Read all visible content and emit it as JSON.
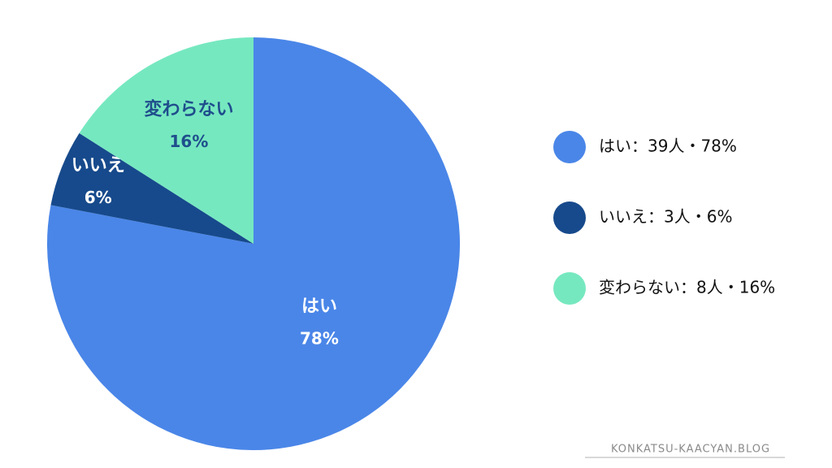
{
  "chart_data": {
    "type": "pie",
    "categories": [
      "はい",
      "いいえ",
      "変わらない"
    ],
    "values": [
      78,
      6,
      16
    ],
    "value_labels": [
      "78%",
      "6%",
      "16%"
    ],
    "colors": [
      "#4a86e8",
      "#174a8c",
      "#76e8c0"
    ],
    "legend_labels": [
      "はい：39人・78%",
      "いいえ：3人・6%",
      "変わらない：8人・16%"
    ],
    "legend": "right",
    "footer": "KONKATSU-KAACYAN.BLOG"
  }
}
